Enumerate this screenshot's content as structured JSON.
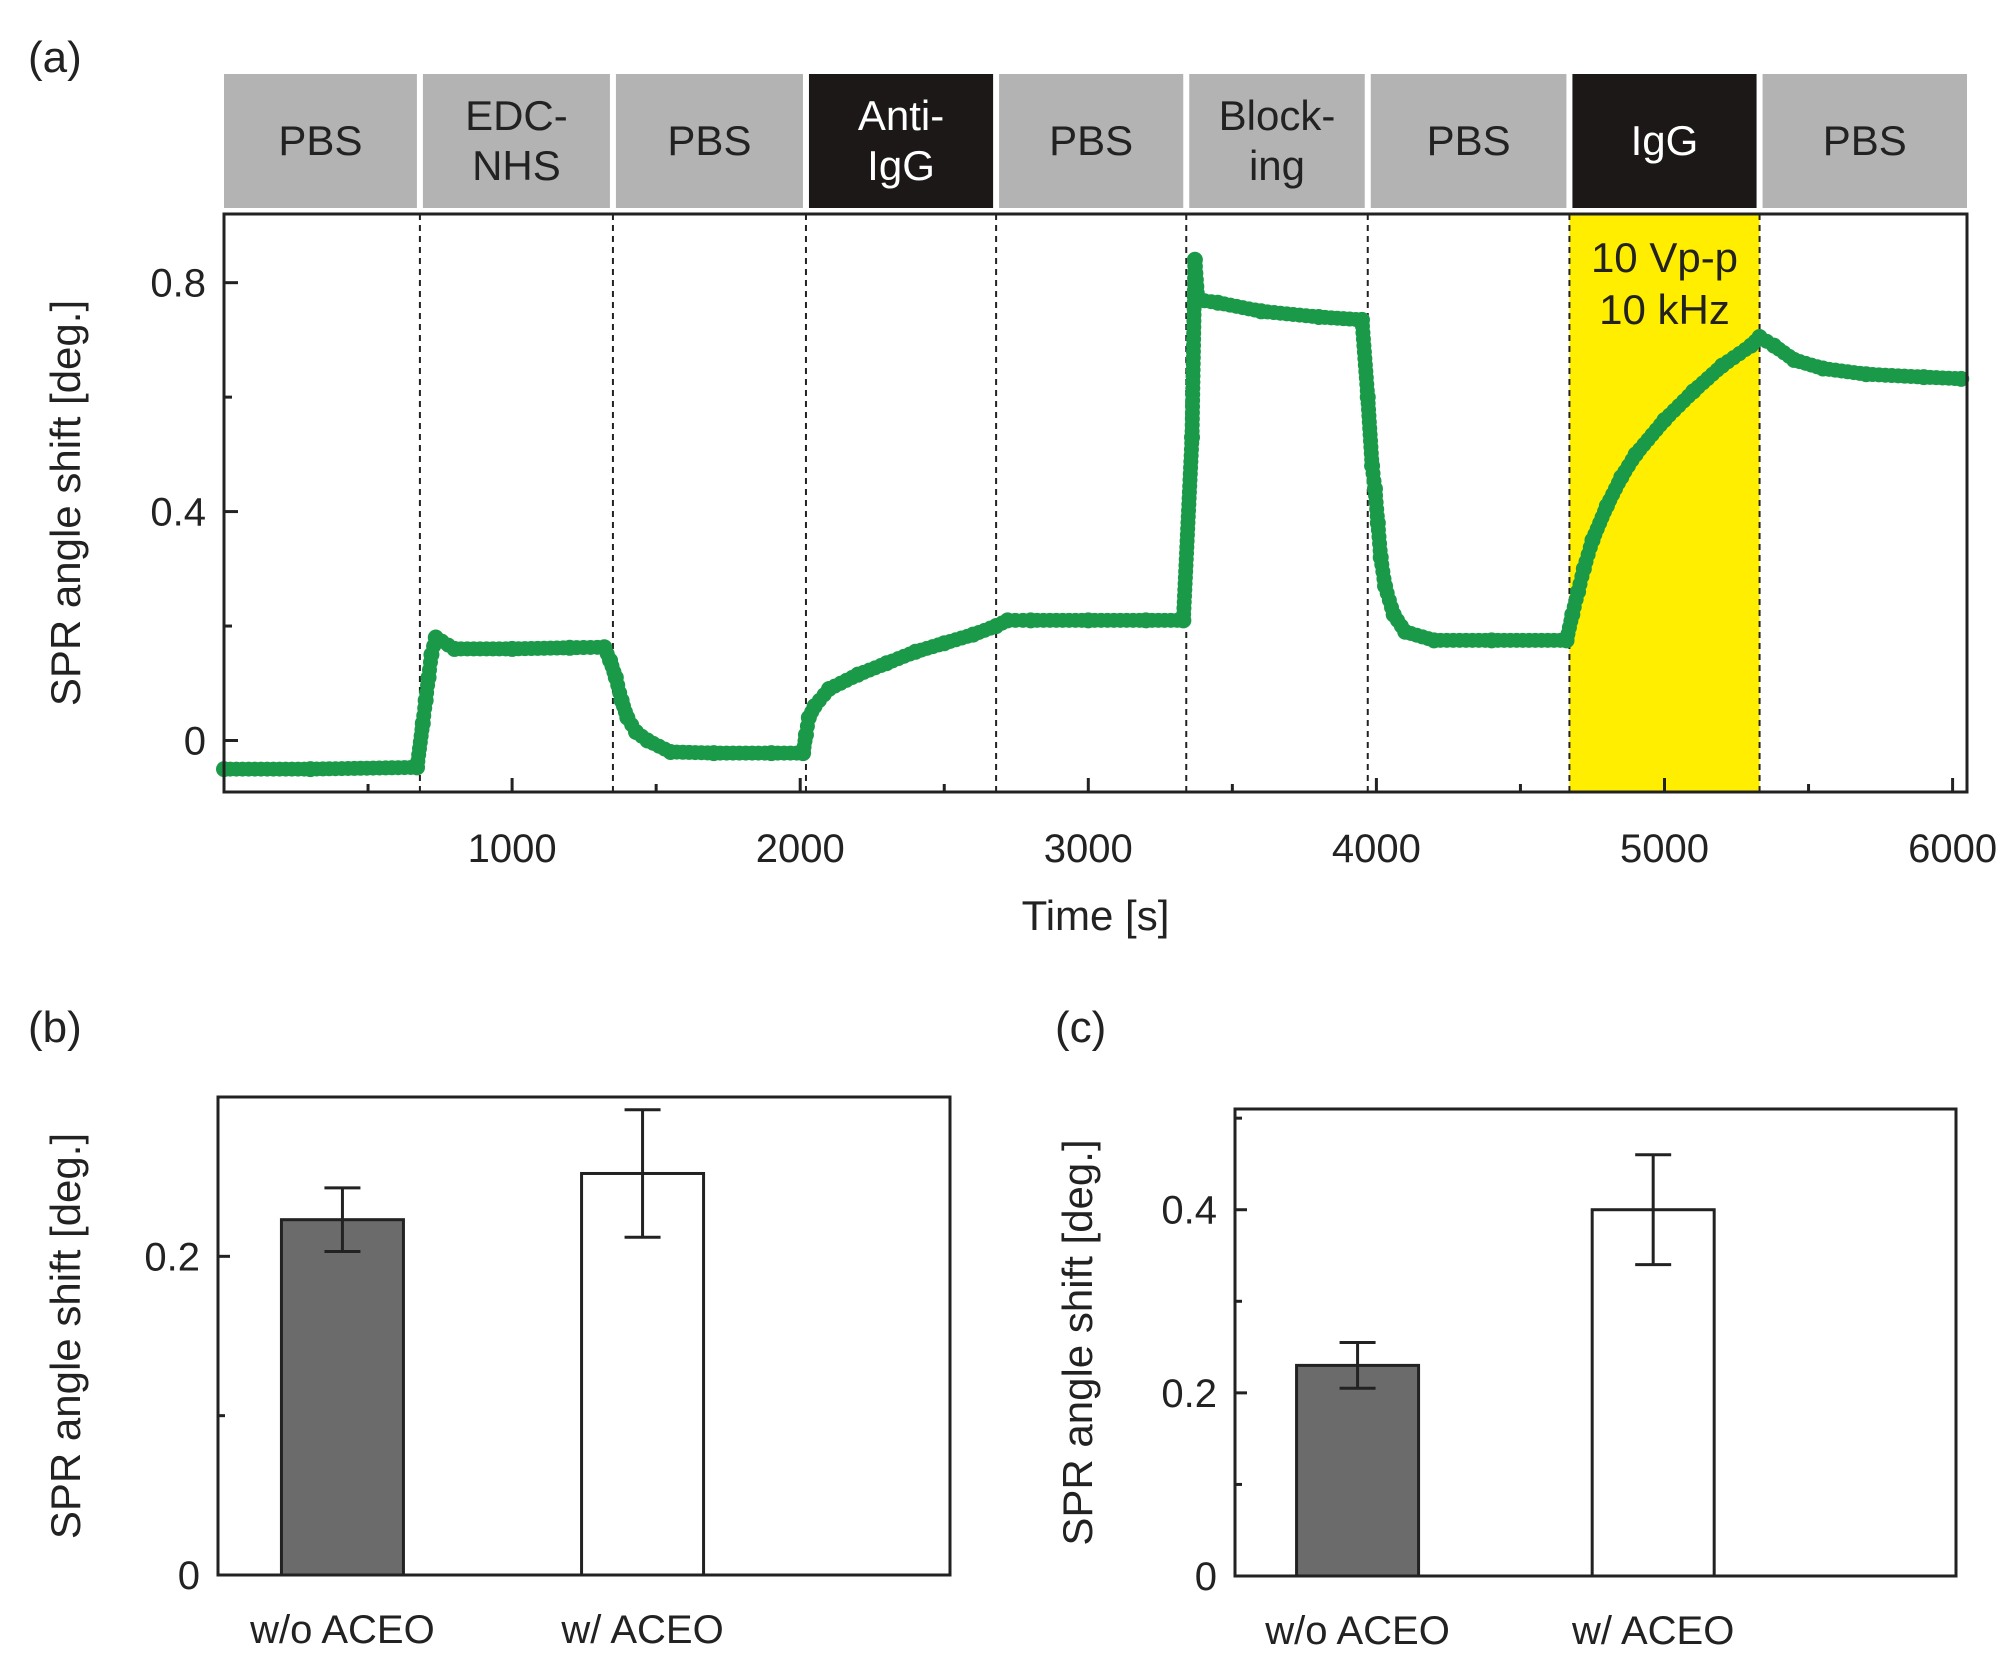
{
  "chart_data": [
    {
      "panel": "(a)",
      "type": "scatter",
      "xlabel": "Time [s]",
      "ylabel": "SPR angle shift [deg.]",
      "xlim": [
        0,
        6050
      ],
      "ylim": [
        -0.09,
        0.92
      ],
      "xticks": [
        1000,
        2000,
        3000,
        4000,
        5000,
        6000
      ],
      "xticks_minor": [
        500,
        1500,
        2500,
        3500,
        4500,
        5500
      ],
      "yticks": [
        0,
        0.4,
        0.8
      ],
      "yticks_minor": [
        0.2,
        0.6
      ],
      "marker_color": "#1a9a48",
      "phases": [
        {
          "label": [
            "PBS"
          ],
          "start": 0,
          "end": 680,
          "dark": false
        },
        {
          "label": [
            "EDC-",
            "NHS"
          ],
          "start": 680,
          "end": 1350,
          "dark": false
        },
        {
          "label": [
            "PBS"
          ],
          "start": 1350,
          "end": 2020,
          "dark": false
        },
        {
          "label": [
            "Anti-",
            "IgG"
          ],
          "start": 2020,
          "end": 2680,
          "dark": true
        },
        {
          "label": [
            "PBS"
          ],
          "start": 2680,
          "end": 3340,
          "dark": false
        },
        {
          "label": [
            "Block-",
            "ing"
          ],
          "start": 3340,
          "end": 3970,
          "dark": false
        },
        {
          "label": [
            "PBS"
          ],
          "start": 3970,
          "end": 4670,
          "dark": false
        },
        {
          "label": [
            "IgG"
          ],
          "start": 4670,
          "end": 5330,
          "dark": true
        },
        {
          "label": [
            "PBS"
          ],
          "start": 5330,
          "end": 6050,
          "dark": false
        }
      ],
      "phase_boundaries": [
        680,
        1350,
        2020,
        2680,
        3340,
        3970,
        4670,
        5330
      ],
      "highlight": {
        "start": 4670,
        "end": 5330,
        "color": "#ffee00",
        "text": [
          "10 Vp-p",
          "10 kHz"
        ]
      },
      "series": [
        {
          "name": "SPR",
          "points": [
            [
              0,
              -0.05
            ],
            [
              300,
              -0.05
            ],
            [
              670,
              -0.047
            ],
            [
              690,
              0.03
            ],
            [
              700,
              0.07
            ],
            [
              710,
              0.11
            ],
            [
              720,
              0.15
            ],
            [
              735,
              0.18
            ],
            [
              800,
              0.16
            ],
            [
              1000,
              0.16
            ],
            [
              1200,
              0.162
            ],
            [
              1320,
              0.163
            ],
            [
              1340,
              0.14
            ],
            [
              1360,
              0.11
            ],
            [
              1380,
              0.07
            ],
            [
              1400,
              0.04
            ],
            [
              1430,
              0.015
            ],
            [
              1470,
              0.0
            ],
            [
              1550,
              -0.02
            ],
            [
              1700,
              -0.022
            ],
            [
              1900,
              -0.022
            ],
            [
              2010,
              -0.022
            ],
            [
              2020,
              0.01
            ],
            [
              2030,
              0.04
            ],
            [
              2050,
              0.06
            ],
            [
              2100,
              0.09
            ],
            [
              2200,
              0.115
            ],
            [
              2300,
              0.135
            ],
            [
              2400,
              0.155
            ],
            [
              2500,
              0.17
            ],
            [
              2600,
              0.185
            ],
            [
              2680,
              0.2
            ],
            [
              2720,
              0.21
            ],
            [
              2800,
              0.21
            ],
            [
              3000,
              0.21
            ],
            [
              3200,
              0.21
            ],
            [
              3330,
              0.21
            ],
            [
              3360,
              0.53
            ],
            [
              3370,
              0.84
            ],
            [
              3380,
              0.77
            ],
            [
              3450,
              0.765
            ],
            [
              3600,
              0.75
            ],
            [
              3800,
              0.74
            ],
            [
              3950,
              0.735
            ],
            [
              3970,
              0.6
            ],
            [
              3985,
              0.48
            ],
            [
              3995,
              0.44
            ],
            [
              4005,
              0.38
            ],
            [
              4015,
              0.32
            ],
            [
              4030,
              0.27
            ],
            [
              4060,
              0.22
            ],
            [
              4100,
              0.19
            ],
            [
              4200,
              0.175
            ],
            [
              4400,
              0.175
            ],
            [
              4660,
              0.175
            ],
            [
              4680,
              0.22
            ],
            [
              4700,
              0.26
            ],
            [
              4720,
              0.3
            ],
            [
              4750,
              0.35
            ],
            [
              4800,
              0.41
            ],
            [
              4850,
              0.46
            ],
            [
              4900,
              0.5
            ],
            [
              5000,
              0.56
            ],
            [
              5100,
              0.61
            ],
            [
              5200,
              0.655
            ],
            [
              5300,
              0.69
            ],
            [
              5330,
              0.705
            ],
            [
              5380,
              0.69
            ],
            [
              5450,
              0.665
            ],
            [
              5550,
              0.65
            ],
            [
              5700,
              0.64
            ],
            [
              5900,
              0.635
            ],
            [
              6030,
              0.632
            ]
          ]
        }
      ]
    },
    {
      "panel": "(b)",
      "type": "bar",
      "categories": [
        "w/o ACEO",
        "w/ ACEO"
      ],
      "values": [
        0.223,
        0.252
      ],
      "errors": [
        0.02,
        0.04
      ],
      "bar_colors": [
        "#6b6b6b",
        "#ffffff"
      ],
      "ylabel": "SPR angle shift [deg.]",
      "ylim": [
        0,
        0.3
      ],
      "yticks": [
        0,
        0.2
      ],
      "yticks_minor": [
        0.1,
        0.3
      ],
      "tick_labels": [
        "0",
        "0.2"
      ]
    },
    {
      "panel": "(c)",
      "type": "bar",
      "categories": [
        "w/o ACEO",
        "w/ ACEO"
      ],
      "values": [
        0.23,
        0.4
      ],
      "errors": [
        0.025,
        0.06
      ],
      "bar_colors": [
        "#6b6b6b",
        "#ffffff"
      ],
      "ylabel": "SPR angle shift [deg.]",
      "ylim": [
        0,
        0.51
      ],
      "yticks": [
        0,
        0.2,
        0.4
      ],
      "yticks_minor": [
        0.1,
        0.3,
        0.5
      ],
      "tick_labels": [
        "0",
        "0.2",
        "0.4"
      ]
    }
  ]
}
